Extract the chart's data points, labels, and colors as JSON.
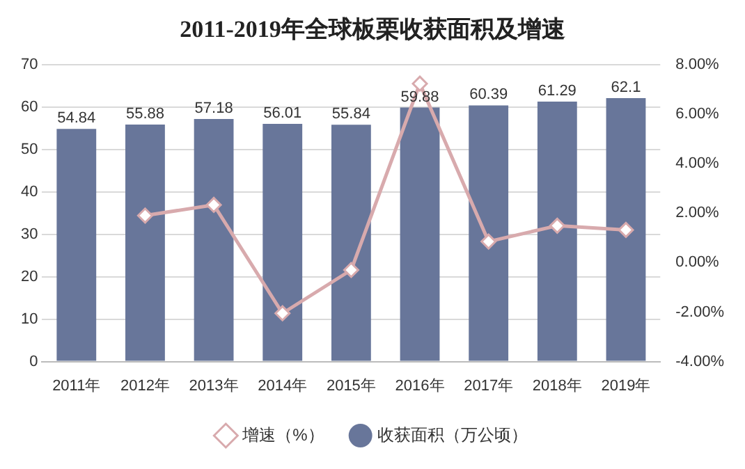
{
  "chart_data": {
    "type": "bar",
    "title": "2011-2019年全球板栗收获面积及增速",
    "categories": [
      "2011年",
      "2012年",
      "2013年",
      "2014年",
      "2015年",
      "2016年",
      "2017年",
      "2018年",
      "2019年"
    ],
    "series": [
      {
        "name": "收获面积（万公顷）",
        "color": "#68769a",
        "values": [
          54.84,
          55.88,
          57.18,
          56.01,
          55.84,
          59.88,
          60.39,
          61.29,
          62.1
        ],
        "value_labels": [
          "54.84",
          "55.88",
          "57.18",
          "56.01",
          "55.84",
          "59.88",
          "60.39",
          "61.29",
          "62.1"
        ]
      },
      {
        "name": "增速（%）",
        "type": "line",
        "axis": "y2",
        "color": "#d8aaad",
        "marker": "diamond",
        "values": [
          null,
          1.9,
          2.33,
          -2.05,
          -0.3,
          7.23,
          0.85,
          1.49,
          1.32
        ]
      }
    ],
    "ylim": [
      0,
      70
    ],
    "yticks": [
      0,
      10,
      20,
      30,
      40,
      50,
      60,
      70
    ],
    "y2lim": [
      -4,
      8
    ],
    "y2ticks": [
      {
        "value": -4,
        "label": "-4.00%"
      },
      {
        "value": -2,
        "label": "-2.00%"
      },
      {
        "value": 0,
        "label": "0.00%"
      },
      {
        "value": 2,
        "label": "2.00%"
      },
      {
        "value": 4,
        "label": "4.00%"
      },
      {
        "value": 6,
        "label": "6.00%"
      },
      {
        "value": 8,
        "label": "8.00%"
      }
    ],
    "grid": "y",
    "legend": "bottom"
  }
}
